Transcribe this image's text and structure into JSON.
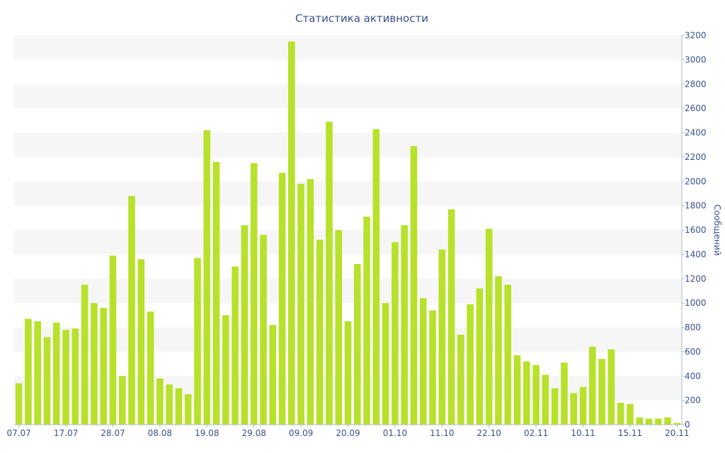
{
  "chart_data": {
    "type": "bar",
    "title": "Статистика активности",
    "ylabel": "Сообщений",
    "xlabel": "",
    "ylim": [
      0,
      3200
    ],
    "y_ticks": [
      0,
      200,
      400,
      600,
      800,
      1000,
      1200,
      1400,
      1600,
      1800,
      2000,
      2200,
      2400,
      2600,
      2800,
      3000,
      3200
    ],
    "y_axis_side": "right",
    "grid": "alternating horizontal bands",
    "x_ticks": [
      {
        "label": "07.07",
        "index": 0
      },
      {
        "label": "17.07",
        "index": 5
      },
      {
        "label": "28.07",
        "index": 10
      },
      {
        "label": "08.08",
        "index": 15
      },
      {
        "label": "19.08",
        "index": 20
      },
      {
        "label": "29.08",
        "index": 25
      },
      {
        "label": "09.09",
        "index": 30
      },
      {
        "label": "20.09",
        "index": 35
      },
      {
        "label": "01.10",
        "index": 40
      },
      {
        "label": "11.10",
        "index": 45
      },
      {
        "label": "22.10",
        "index": 50
      },
      {
        "label": "02.11",
        "index": 55
      },
      {
        "label": "10.11",
        "index": 60
      },
      {
        "label": "15.11",
        "index": 65
      },
      {
        "label": "20.11",
        "index": 70
      }
    ],
    "values": [
      340,
      870,
      850,
      720,
      840,
      780,
      790,
      1150,
      1000,
      960,
      1390,
      400,
      1880,
      1360,
      930,
      380,
      330,
      300,
      250,
      1370,
      2420,
      2160,
      900,
      1300,
      1640,
      2150,
      1560,
      820,
      2070,
      3150,
      1980,
      2020,
      1520,
      2490,
      1600,
      850,
      1320,
      1710,
      2430,
      1000,
      1500,
      1640,
      2290,
      1040,
      940,
      1440,
      1770,
      740,
      990,
      1120,
      1610,
      1220,
      1150,
      570,
      520,
      490,
      410,
      300,
      510,
      260,
      310,
      640,
      540,
      620,
      180,
      170,
      60,
      50,
      50,
      60,
      15
    ],
    "bar_color": "#b7e12a",
    "band_color": "#f6f6f6",
    "text_color": "#3a4f8f"
  }
}
